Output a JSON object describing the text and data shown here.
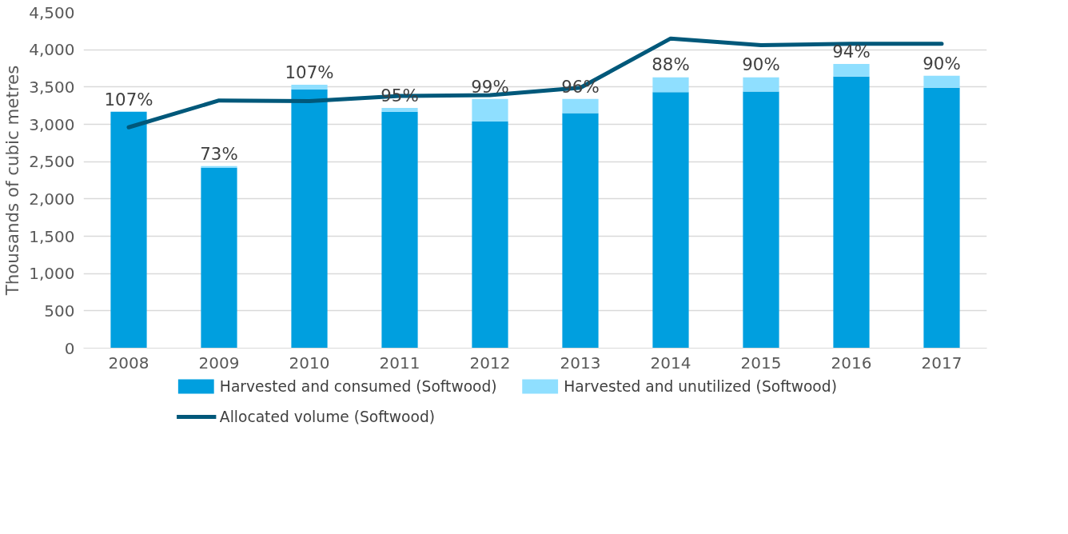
{
  "chart_data": {
    "type": "bar",
    "stacked": true,
    "ylabel": "Thousands of cubic metres",
    "categories": [
      "2008",
      "2009",
      "2010",
      "2011",
      "2012",
      "2013",
      "2014",
      "2015",
      "2016",
      "2017"
    ],
    "series": [
      {
        "name": "Harvested and consumed (Softwood)",
        "color": "#009fdf",
        "values": [
          3170,
          2420,
          3470,
          3170,
          3040,
          3150,
          3430,
          3440,
          3640,
          3490
        ]
      },
      {
        "name": "Harvested and unutilized (Softwood)",
        "color": "#8fdfff",
        "values": [
          0,
          20,
          60,
          50,
          300,
          190,
          200,
          190,
          170,
          160
        ]
      },
      {
        "name": "Allocated volume (Softwood)",
        "type": "line",
        "color": "#00587a",
        "values": [
          2960,
          3320,
          3310,
          3380,
          3390,
          3490,
          4150,
          4060,
          4080,
          4080
        ]
      }
    ],
    "ylim": [
      0,
      4500
    ],
    "yticks": [
      {
        "value": 0,
        "label": "0"
      },
      {
        "value": 500,
        "label": "500"
      },
      {
        "value": 1000,
        "label": "1,000"
      },
      {
        "value": 1500,
        "label": "1,500"
      },
      {
        "value": 2000,
        "label": "2,000"
      },
      {
        "value": 2500,
        "label": "2,500"
      },
      {
        "value": 3000,
        "label": "3,000"
      },
      {
        "value": 3500,
        "label": "3,500"
      },
      {
        "value": 4000,
        "label": "4,000"
      },
      {
        "value": 4500,
        "label": "4,500"
      }
    ],
    "annotations": [
      {
        "text": "107%",
        "x": "2008",
        "y": 3170
      },
      {
        "text": "73%",
        "x": "2009",
        "y": 2440
      },
      {
        "text": "107%",
        "x": "2010",
        "y": 3530
      },
      {
        "text": "95%",
        "x": "2011",
        "y": 3220
      },
      {
        "text": "99%",
        "x": "2012",
        "y": 3340
      },
      {
        "text": "96%",
        "x": "2013",
        "y": 3340
      },
      {
        "text": "88%",
        "x": "2014",
        "y": 3635
      },
      {
        "text": "90%",
        "x": "2015",
        "y": 3635
      },
      {
        "text": "94%",
        "x": "2016",
        "y": 3810
      },
      {
        "text": "90%",
        "x": "2017",
        "y": 3650
      }
    ],
    "grid": "y",
    "legend": "bottom"
  }
}
